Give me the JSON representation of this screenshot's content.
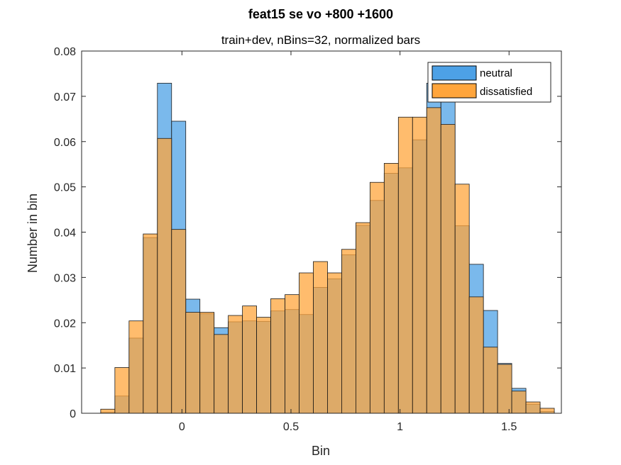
{
  "chart_data": {
    "type": "bar",
    "title": "feat15 se vo  +800  +1600",
    "subtitle": "train+dev, nBins=32, normalized bars",
    "xlabel": "Bin",
    "ylabel": "Number in bin",
    "xlim": [
      -0.46,
      1.74
    ],
    "ylim": [
      0,
      0.08
    ],
    "xticks": [
      0,
      0.5,
      1,
      1.5
    ],
    "xtick_labels": [
      "0",
      "0.5",
      "1",
      "1.5"
    ],
    "yticks": [
      0,
      0.01,
      0.02,
      0.03,
      0.04,
      0.05,
      0.06,
      0.07,
      0.08
    ],
    "ytick_labels": [
      "0",
      "0.01",
      "0.02",
      "0.03",
      "0.04",
      "0.05",
      "0.06",
      "0.07",
      "0.08"
    ],
    "grid": false,
    "legend_position": "top-right",
    "bin_centers": [
      -0.34,
      -0.275,
      -0.21,
      -0.145,
      -0.08,
      -0.015,
      0.05,
      0.115,
      0.18,
      0.245,
      0.31,
      0.375,
      0.44,
      0.505,
      0.57,
      0.635,
      0.7,
      0.765,
      0.83,
      0.895,
      0.96,
      1.025,
      1.09,
      1.155,
      1.22,
      1.285,
      1.35,
      1.415,
      1.48,
      1.545,
      1.61,
      1.675
    ],
    "bin_width": 0.065,
    "series": [
      {
        "name": "neutral",
        "color": "#4DA1E6",
        "values": [
          0.0002,
          0.0038,
          0.0166,
          0.0388,
          0.0729,
          0.0645,
          0.0252,
          0.022,
          0.0189,
          0.0202,
          0.0204,
          0.0203,
          0.0226,
          0.0229,
          0.0218,
          0.0278,
          0.0297,
          0.035,
          0.0415,
          0.047,
          0.053,
          0.0542,
          0.0604,
          0.0729,
          0.0715,
          0.0414,
          0.0329,
          0.0227,
          0.011,
          0.0055,
          0.002,
          0.0004
        ]
      },
      {
        "name": "dissatisfied",
        "color": "#FFA53C",
        "values": [
          0.0009,
          0.0101,
          0.0204,
          0.0396,
          0.0607,
          0.0406,
          0.0223,
          0.0223,
          0.0174,
          0.0216,
          0.0237,
          0.0212,
          0.0253,
          0.0262,
          0.031,
          0.0335,
          0.031,
          0.0362,
          0.0421,
          0.051,
          0.0552,
          0.0654,
          0.0654,
          0.0675,
          0.0638,
          0.0506,
          0.0257,
          0.0146,
          0.0108,
          0.0049,
          0.0025,
          0.0011
        ]
      }
    ]
  },
  "legend": {
    "items": [
      {
        "label": "neutral",
        "color": "#4DA1E6"
      },
      {
        "label": "dissatisfied",
        "color": "#FFA53C"
      }
    ]
  }
}
